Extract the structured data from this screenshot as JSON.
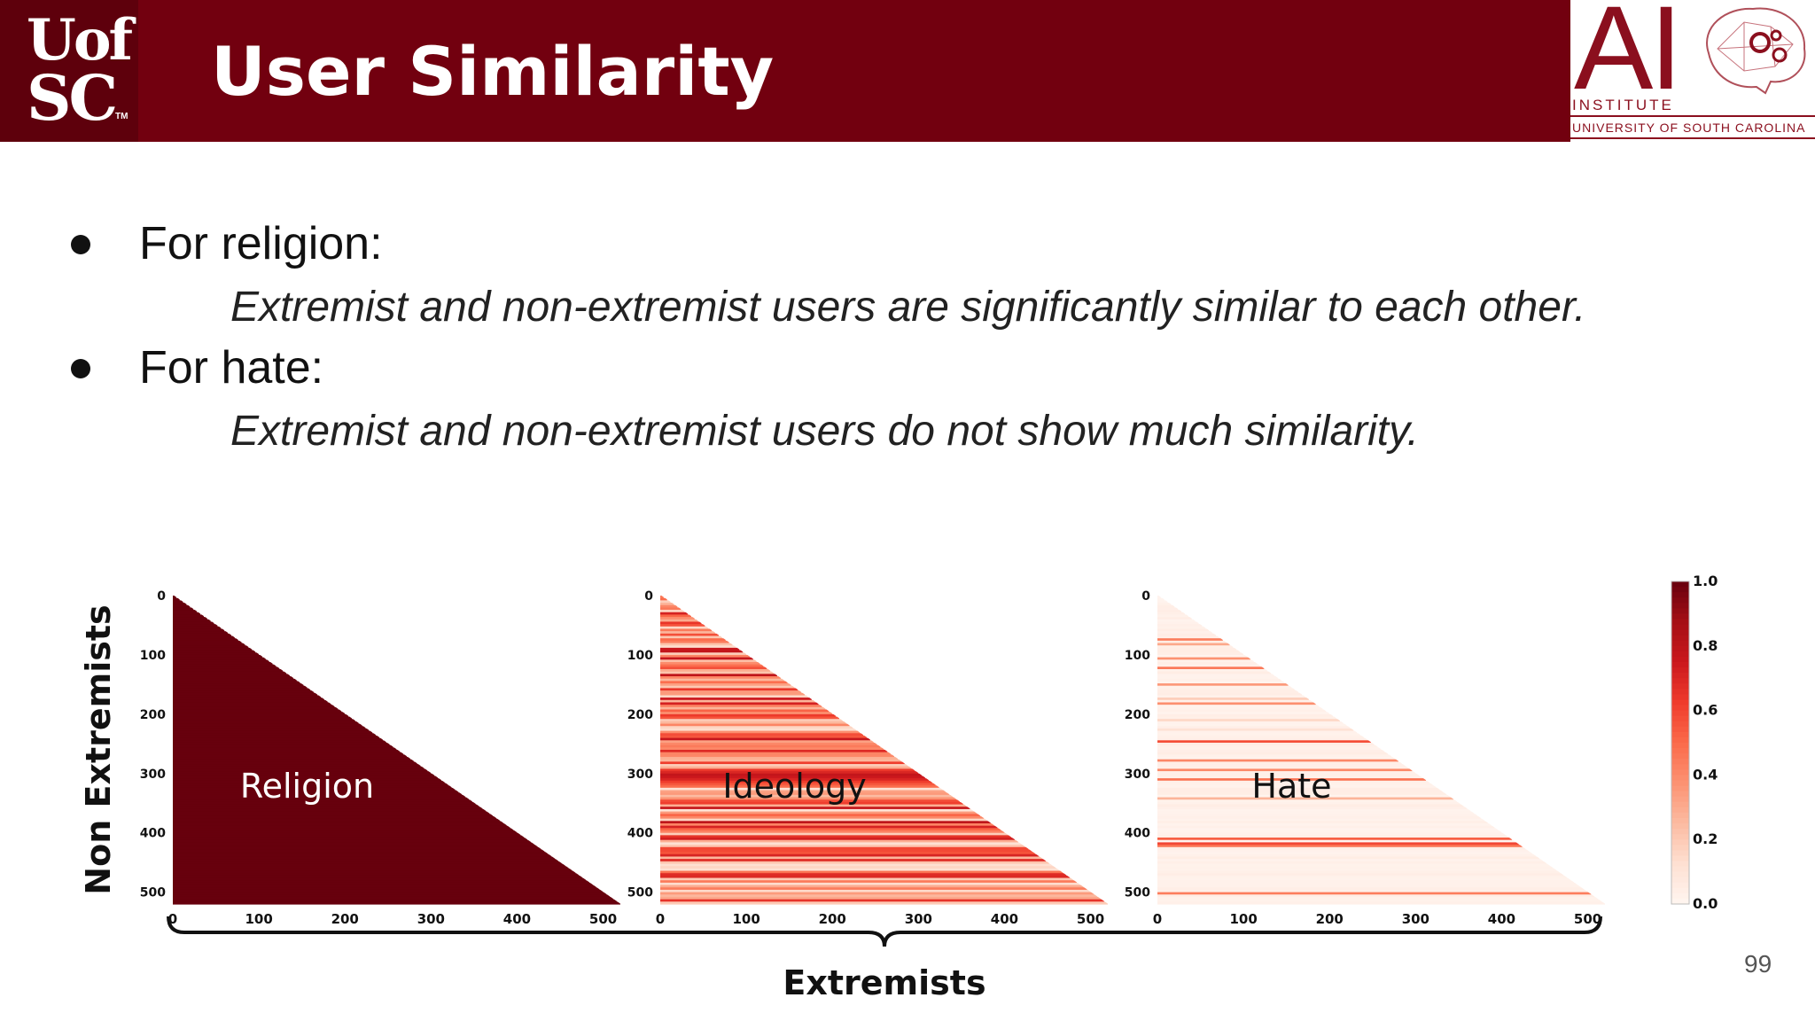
{
  "header": {
    "title": "User Similarity",
    "left_logo": {
      "line1": "Uof",
      "line2": "SC",
      "tm": "TM"
    },
    "right_logo": {
      "ai": "AI",
      "institute": "INSTITUTE",
      "university": "UNIVERSITY OF SOUTH CAROLINA"
    }
  },
  "bullets": [
    {
      "label": "For religion:",
      "detail": "Extremist and non-extremist users are significantly similar to each other."
    },
    {
      "label": "For hate:",
      "detail": "Extremist and non-extremist users do not show much similarity."
    }
  ],
  "page_number": "99",
  "chart_data": {
    "type": "heatmap",
    "xlabel": "Extremists",
    "ylabel": "Non Extremists",
    "x_ticks": [
      "0",
      "100",
      "200",
      "300",
      "400",
      "500"
    ],
    "y_ticks": [
      "0",
      "100",
      "200",
      "300",
      "400",
      "500"
    ],
    "xlim": [
      0,
      520
    ],
    "ylim": [
      0,
      520
    ],
    "colorbar": {
      "ticks": [
        "1.0",
        "0.8",
        "0.6",
        "0.4",
        "0.2",
        "0.0"
      ],
      "range": [
        0,
        1
      ],
      "colors": [
        "#fff5f0",
        "#fee0d2",
        "#fcbba1",
        "#fc9272",
        "#fb6a4a",
        "#ef3b2c",
        "#cb181d",
        "#a50f15",
        "#67000d"
      ]
    },
    "panels": [
      {
        "label": "Religion",
        "mean_similarity": 1.0,
        "variability": 0.0
      },
      {
        "label": "Ideology",
        "mean_similarity": 0.45,
        "variability": 0.35
      },
      {
        "label": "Hate",
        "mean_similarity": 0.04,
        "variability": 0.1
      }
    ]
  }
}
